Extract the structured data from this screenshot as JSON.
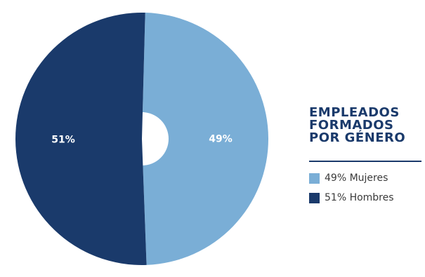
{
  "chart_data": {
    "type": "pie",
    "donut": true,
    "title_lines": [
      "EMPLEADOS",
      "FORMADOS",
      "POR GÉNERO"
    ],
    "slices": [
      {
        "label": "Mujeres",
        "value": 49,
        "display": "49%",
        "legend": "49% Mujeres",
        "color": "#7aaed6"
      },
      {
        "label": "Hombres",
        "value": 51,
        "display": "51%",
        "legend": "51% Hombres",
        "color": "#1a3a6b"
      }
    ],
    "legend_position": "right"
  }
}
